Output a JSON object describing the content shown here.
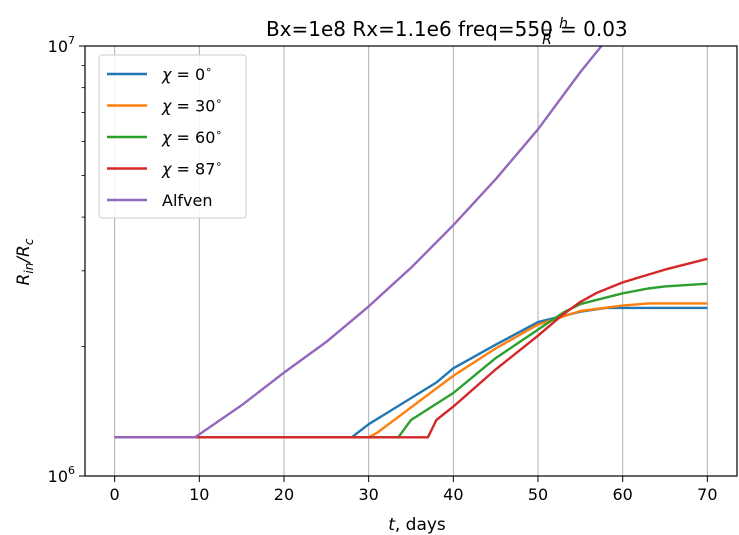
{
  "chart_data": {
    "type": "line",
    "title": "Bx=1e8 Rx=1.1e6 freq=550 h/R = 0.03",
    "title_parts": {
      "prefix": "Bx=1e8 Rx=1.1e6 freq=550 ",
      "frac_num": "h",
      "frac_den": "R",
      "suffix": "= 0.03"
    },
    "xlabel": "t, days",
    "xlabel_parts": {
      "var": "t",
      "rest": ", days"
    },
    "ylabel": "R_in/R_c",
    "ylabel_parts": {
      "r1": "R",
      "s1": "in",
      "slash": "/R",
      "s2": "c"
    },
    "xlim": [
      -3.5,
      73.5
    ],
    "ylim": [
      1000000,
      10000000
    ],
    "yscale": "log",
    "grid": "vertical",
    "legend_position": "top-left",
    "xticks": [
      0,
      10,
      20,
      30,
      40,
      50,
      60,
      70
    ],
    "xtick_labels": [
      "0",
      "10",
      "20",
      "30",
      "40",
      "50",
      "60",
      "70"
    ],
    "yticks": [
      1000000,
      10000000
    ],
    "ytick_labels": [
      {
        "base": "10",
        "exp": "6"
      },
      {
        "base": "10",
        "exp": "7"
      }
    ],
    "series": [
      {
        "name": "χ = 0°",
        "legend": {
          "sym": "χ",
          "eq": " = 0",
          "deg": "∘"
        },
        "color": "#1f77b4",
        "x": [
          0,
          28,
          30,
          38,
          40,
          45,
          50,
          55,
          58,
          65,
          70
        ],
        "y": [
          1230000,
          1230000,
          1320000,
          1650000,
          1780000,
          2020000,
          2280000,
          2410000,
          2460000,
          2460000,
          2460000
        ]
      },
      {
        "name": "χ = 30°",
        "legend": {
          "sym": "χ",
          "eq": " = 30",
          "deg": "∘"
        },
        "color": "#ff7f0e",
        "x": [
          0,
          30,
          31,
          40,
          45,
          50,
          55,
          60,
          63,
          70
        ],
        "y": [
          1230000,
          1230000,
          1260000,
          1710000,
          1980000,
          2250000,
          2420000,
          2490000,
          2520000,
          2520000
        ]
      },
      {
        "name": "χ = 60°",
        "legend": {
          "sym": "χ",
          "eq": " = 60",
          "deg": "∘"
        },
        "color": "#2ca02c",
        "x": [
          0,
          33.5,
          35,
          40,
          45,
          50,
          53,
          55,
          60,
          63,
          65,
          70
        ],
        "y": [
          1230000,
          1230000,
          1350000,
          1560000,
          1880000,
          2190000,
          2400000,
          2510000,
          2660000,
          2730000,
          2760000,
          2800000
        ]
      },
      {
        "name": "χ = 87°",
        "legend": {
          "sym": "χ",
          "eq": " = 87",
          "deg": "∘"
        },
        "color": "#d62728",
        "x": [
          0,
          37,
          38,
          40,
          45,
          50,
          53,
          55,
          57,
          60,
          65,
          70
        ],
        "y": [
          1230000,
          1230000,
          1350000,
          1450000,
          1770000,
          2120000,
          2380000,
          2540000,
          2670000,
          2820000,
          3020000,
          3200000
        ]
      },
      {
        "name": "Alfven",
        "legend": {
          "sym": "",
          "eq": "Alfven",
          "deg": ""
        },
        "color": "#9467bd",
        "x": [
          0,
          9.5,
          15,
          20,
          25,
          30,
          35,
          40,
          45,
          50,
          55,
          57.5
        ],
        "y": [
          1230000,
          1230000,
          1460000,
          1740000,
          2050000,
          2480000,
          3050000,
          3830000,
          4900000,
          6400000,
          8700000,
          10000000
        ]
      }
    ]
  }
}
